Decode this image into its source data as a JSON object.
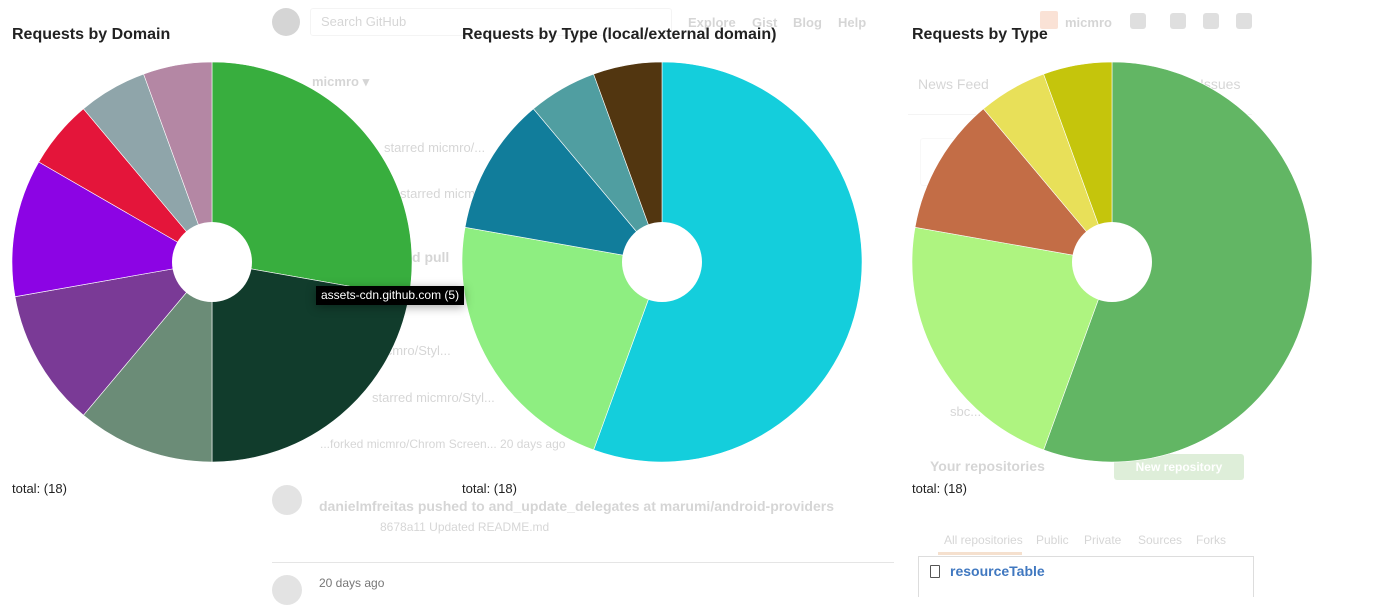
{
  "background_page": {
    "search_placeholder": "Search GitHub",
    "nav": [
      "Explore",
      "Gist",
      "Blog",
      "Help"
    ],
    "username": "micmro",
    "context_switcher": "micmro ▾",
    "news_feed_tab": "News Feed",
    "issues_tab": "Issues",
    "feed_fragments": [
      "starred micmro/...",
      "starred micm...",
      "d pull",
      "micmro/Styl...",
      "starred micmro/Styl...",
      "...forked micmro/Chrom Screen... 20 days ago"
    ],
    "push_event": "danielmfreitas pushed to and_update_delegates at marumi/android-providers",
    "commit_line": "8678a11 Updated README.md",
    "your_repositories": "Your repositories",
    "new_repository_button": "New repository",
    "repo_filters": [
      "All repositories",
      "Public",
      "Private",
      "Sources",
      "Forks"
    ],
    "side_item": "sbc..."
  },
  "repo_list": {
    "first_repo": "resourceTable"
  },
  "feed": {
    "timestamp": "20 days ago"
  },
  "tooltip": {
    "text": "assets-cdn.github.com (5)"
  },
  "chart_data": [
    {
      "type": "pie",
      "title": "Requests by Domain",
      "total_label": "total: (18)",
      "donut_hole": true,
      "slices": [
        {
          "value": 5,
          "color": "#38ae3e"
        },
        {
          "value": 4,
          "color": "#113c2c"
        },
        {
          "value": 2,
          "color": "#6b8c77"
        },
        {
          "value": 2,
          "color": "#7a3a96"
        },
        {
          "value": 2,
          "color": "#8c04e4"
        },
        {
          "value": 1,
          "color": "#e4153a"
        },
        {
          "value": 1,
          "color": "#8fa5aa"
        },
        {
          "value": 1,
          "color": "#b487a4"
        }
      ]
    },
    {
      "type": "pie",
      "title": "Requests by Type (local/external domain)",
      "total_label": "total: (18)",
      "donut_hole": true,
      "slices": [
        {
          "value": 10,
          "color": "#14cedc"
        },
        {
          "value": 4,
          "color": "#8eee81"
        },
        {
          "value": 2,
          "color": "#117d9b"
        },
        {
          "value": 1,
          "color": "#509ea1"
        },
        {
          "value": 1,
          "color": "#523610"
        }
      ]
    },
    {
      "type": "pie",
      "title": "Requests by Type",
      "total_label": "total: (18)",
      "donut_hole": true,
      "slices": [
        {
          "value": 10,
          "color": "#62b664"
        },
        {
          "value": 4,
          "color": "#aef480"
        },
        {
          "value": 2,
          "color": "#c36d46"
        },
        {
          "value": 1,
          "color": "#e8e059"
        },
        {
          "value": 1,
          "color": "#c5c50c"
        }
      ]
    }
  ]
}
